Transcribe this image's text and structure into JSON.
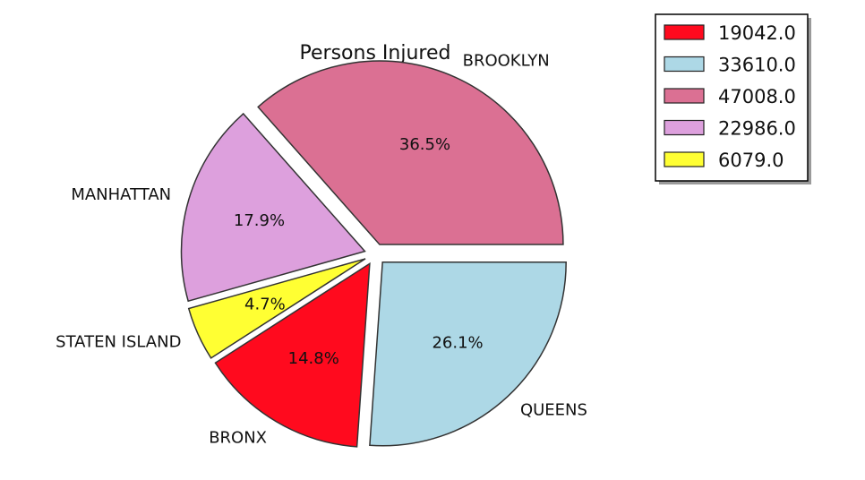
{
  "chart_data": {
    "type": "pie",
    "title": "Persons Injured",
    "slices": [
      {
        "label": "BROOKLYN",
        "value": 47008.0,
        "pct": "36.5%",
        "color": "#db7093",
        "legend": "47008.0"
      },
      {
        "label": "MANHATTAN",
        "value": 22986.0,
        "pct": "17.9%",
        "color": "#dda0dd",
        "legend": "22986.0"
      },
      {
        "label": "STATEN ISLAND",
        "value": 6079.0,
        "pct": "4.7%",
        "color": "#ffff33",
        "legend": "6079.0"
      },
      {
        "label": "BRONX",
        "value": 19042.0,
        "pct": "14.8%",
        "color": "#ff0a1e",
        "legend": "19042.0"
      },
      {
        "label": "QUEENS",
        "value": 33610.0,
        "pct": "26.1%",
        "color": "#add8e6",
        "legend": "33610.0"
      }
    ],
    "legend_order": [
      "BRONX",
      "QUEENS",
      "BROOKLYN",
      "MANHATTAN",
      "STATEN ISLAND"
    ],
    "legend_placement": "top-right",
    "exploded": true
  }
}
